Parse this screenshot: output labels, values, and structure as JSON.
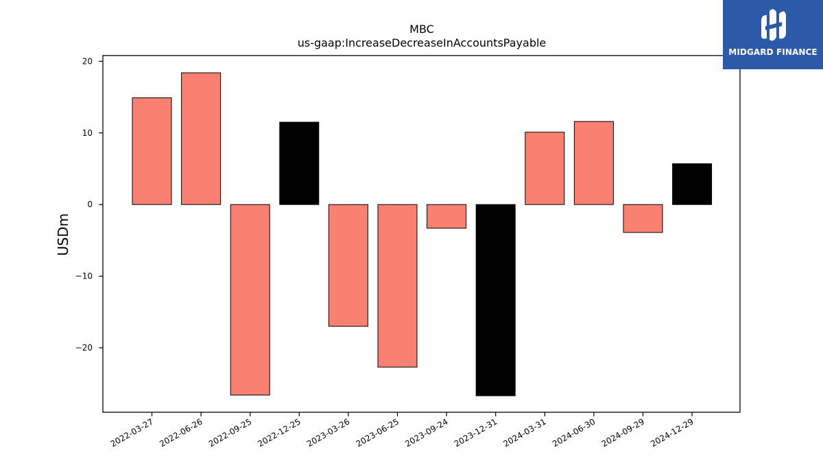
{
  "chart_data": {
    "type": "bar",
    "title": "MBC",
    "subtitle": "us-gaap:IncreaseDecreaseInAccountsPayable",
    "xlabel": "",
    "ylabel": "USDm",
    "ylim": [
      -29,
      20.8
    ],
    "yticks": [
      20,
      10,
      0,
      -10,
      -20
    ],
    "ytick_labels": [
      "20",
      "10",
      "0",
      "−10",
      "−20"
    ],
    "grid": false,
    "categories": [
      "2022-03-27",
      "2022-06-26",
      "2022-09-25",
      "2022-12-25",
      "2023-03-26",
      "2023-06-25",
      "2023-09-24",
      "2023-12-31",
      "2024-03-31",
      "2024-06-30",
      "2024-09-29",
      "2024-12-29"
    ],
    "values": [
      14.9,
      18.4,
      -26.6,
      11.5,
      -17.0,
      -22.7,
      -3.3,
      -26.7,
      10.1,
      11.6,
      -3.9,
      5.7
    ],
    "bar_colors": [
      "#fa8072",
      "#fa8072",
      "#fa8072",
      "#000000",
      "#fa8072",
      "#fa8072",
      "#fa8072",
      "#000000",
      "#fa8072",
      "#fa8072",
      "#fa8072",
      "#000000"
    ]
  },
  "logo": {
    "text": "MIDGARD FINANCE",
    "background": "#2c5aa9",
    "icon": "midgard-logo-icon"
  }
}
